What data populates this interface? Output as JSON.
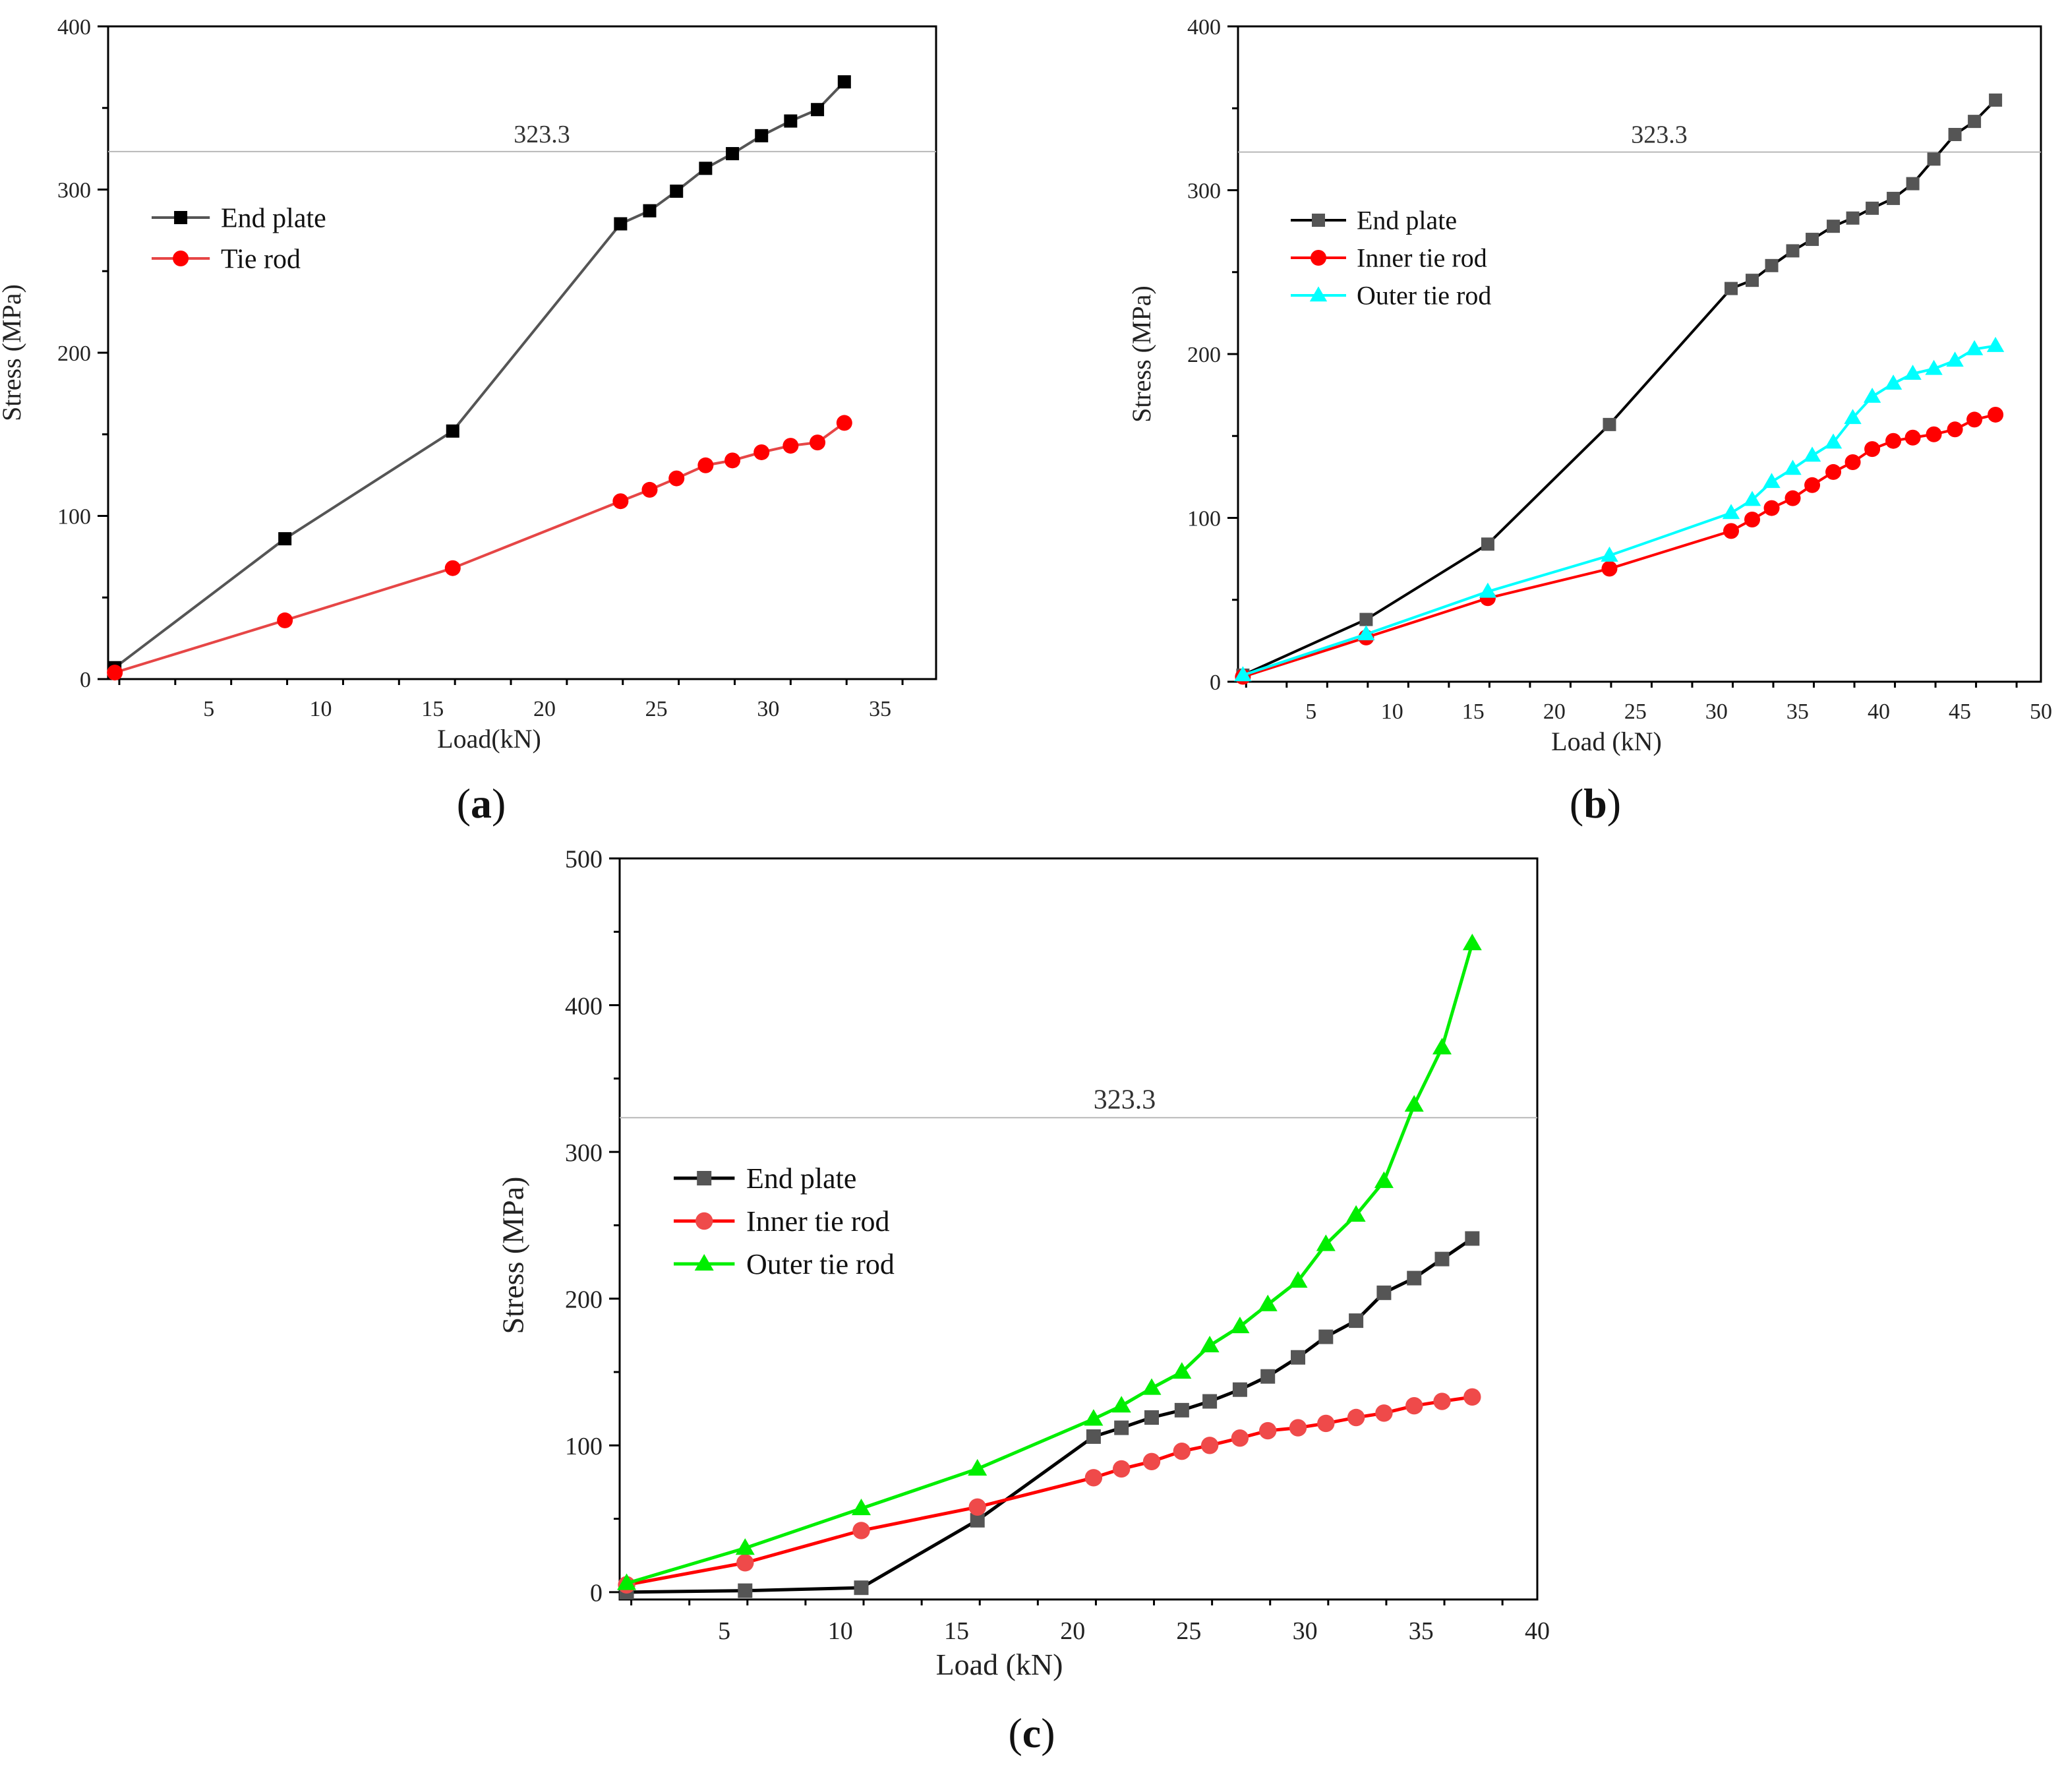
{
  "chart_data": [
    {
      "id": "a",
      "type": "line",
      "panel_label": "a",
      "xlabel": "Load(kN)",
      "ylabel": "Stress (MPa)",
      "xlim": [
        0.5,
        37.5
      ],
      "ylim": [
        0,
        400
      ],
      "xticks": [
        5,
        10,
        15,
        20,
        25,
        30,
        35
      ],
      "yticks": [
        0,
        100,
        200,
        300,
        400
      ],
      "reference_line": {
        "value": 323.3,
        "label": "323.3"
      },
      "legend_position": "upper-left",
      "series": [
        {
          "name": "End plate",
          "color": "#555555",
          "marker_color": "#000000",
          "marker": "square",
          "x": [
            0.8,
            8.4,
            15.9,
            23.4,
            24.7,
            25.9,
            27.2,
            28.4,
            29.7,
            31.0,
            32.2,
            33.4
          ],
          "y": [
            7,
            86,
            152,
            279,
            287,
            299,
            313,
            322,
            333,
            342,
            349,
            366
          ]
        },
        {
          "name": "Tie rod",
          "color": "#e64646",
          "marker_color": "#ff0000",
          "marker": "circle",
          "x": [
            0.8,
            8.4,
            15.9,
            23.4,
            24.7,
            25.9,
            27.2,
            28.4,
            29.7,
            31.0,
            32.2,
            33.4
          ],
          "y": [
            4,
            36,
            68,
            109,
            116,
            123,
            131,
            134,
            139,
            143,
            145,
            157
          ]
        }
      ]
    },
    {
      "id": "b",
      "type": "line",
      "panel_label": "b",
      "xlabel": "Load (kN)",
      "ylabel": "Stress (MPa)",
      "xlim": [
        0.5,
        50
      ],
      "ylim": [
        0,
        400
      ],
      "xticks": [
        5,
        10,
        15,
        20,
        25,
        30,
        35,
        40,
        45,
        50
      ],
      "yticks": [
        0,
        100,
        200,
        300,
        400
      ],
      "reference_line": {
        "value": 323.3,
        "label": "323.3"
      },
      "legend_position": "upper-left",
      "series": [
        {
          "name": "End plate",
          "color": "#000000",
          "marker_color": "#555555",
          "marker": "square",
          "x": [
            0.8,
            8.4,
            15.9,
            23.4,
            30.9,
            32.2,
            33.4,
            34.7,
            35.9,
            37.2,
            38.4,
            39.6,
            40.9,
            42.1,
            43.4,
            44.7,
            45.9,
            47.2
          ],
          "y": [
            4,
            38,
            84,
            157,
            240,
            245,
            254,
            263,
            270,
            278,
            283,
            289,
            295,
            304,
            319,
            334,
            342,
            355
          ]
        },
        {
          "name": "Inner tie rod",
          "color": "#ff0000",
          "marker_color": "#ff0000",
          "marker": "circle",
          "x": [
            0.8,
            8.4,
            15.9,
            23.4,
            30.9,
            32.2,
            33.4,
            34.7,
            35.9,
            37.2,
            38.4,
            39.6,
            40.9,
            42.1,
            43.4,
            44.7,
            45.9,
            47.2
          ],
          "y": [
            3,
            27,
            51,
            69,
            92,
            99,
            106,
            112,
            120,
            128,
            134,
            142,
            147,
            149,
            151,
            154,
            160,
            163
          ]
        },
        {
          "name": "Outer tie rod",
          "color": "#00ffff",
          "marker_color": "#00ffff",
          "marker": "triangle",
          "x": [
            0.8,
            8.4,
            15.9,
            23.4,
            30.9,
            32.2,
            33.4,
            34.7,
            35.9,
            37.2,
            38.4,
            39.6,
            40.9,
            42.1,
            43.4,
            44.7,
            45.9,
            47.2
          ],
          "y": [
            4,
            29,
            55,
            77,
            103,
            111,
            122,
            130,
            138,
            146,
            161,
            174,
            182,
            188,
            191,
            196,
            203,
            205
          ]
        }
      ]
    },
    {
      "id": "c",
      "type": "line",
      "panel_label": "c",
      "xlabel": "Load (kN)",
      "ylabel": "Stress (MPa)",
      "xlim": [
        0.5,
        40
      ],
      "ylim": [
        -5,
        500
      ],
      "xticks": [
        5,
        10,
        15,
        20,
        25,
        30,
        35,
        40
      ],
      "yticks": [
        0,
        100,
        200,
        300,
        400,
        500
      ],
      "reference_line": {
        "value": 323.3,
        "label": "323.3"
      },
      "legend_position": "middle-left",
      "series": [
        {
          "name": "End plate",
          "color": "#000000",
          "marker_color": "#555555",
          "marker": "square",
          "x": [
            0.8,
            5.9,
            10.9,
            15.9,
            20.9,
            22.1,
            23.4,
            24.7,
            25.9,
            27.2,
            28.4,
            29.7,
            30.9,
            32.2,
            33.4,
            34.7,
            35.9,
            37.2
          ],
          "y": [
            0,
            1,
            3,
            49,
            106,
            112,
            119,
            124,
            130,
            138,
            147,
            160,
            174,
            185,
            204,
            214,
            227,
            241
          ]
        },
        {
          "name": "Inner tie rod",
          "color": "#ff0000",
          "marker_color": "#ef4a4a",
          "marker": "circle",
          "x": [
            0.8,
            5.9,
            10.9,
            15.9,
            20.9,
            22.1,
            23.4,
            24.7,
            25.9,
            27.2,
            28.4,
            29.7,
            30.9,
            32.2,
            33.4,
            34.7,
            35.9,
            37.2
          ],
          "y": [
            5,
            20,
            42,
            58,
            78,
            84,
            89,
            96,
            100,
            105,
            110,
            112,
            115,
            119,
            122,
            127,
            130,
            133
          ]
        },
        {
          "name": "Outer tie rod",
          "color": "#00ee00",
          "marker_color": "#00ee00",
          "marker": "triangle",
          "x": [
            0.8,
            5.9,
            10.9,
            15.9,
            20.9,
            22.1,
            23.4,
            24.7,
            25.9,
            27.2,
            28.4,
            29.7,
            30.9,
            32.2,
            33.4,
            34.7,
            35.9,
            37.2
          ],
          "y": [
            6,
            30,
            57,
            84,
            118,
            127,
            139,
            150,
            168,
            181,
            196,
            212,
            237,
            257,
            280,
            332,
            371,
            442
          ]
        }
      ]
    }
  ]
}
